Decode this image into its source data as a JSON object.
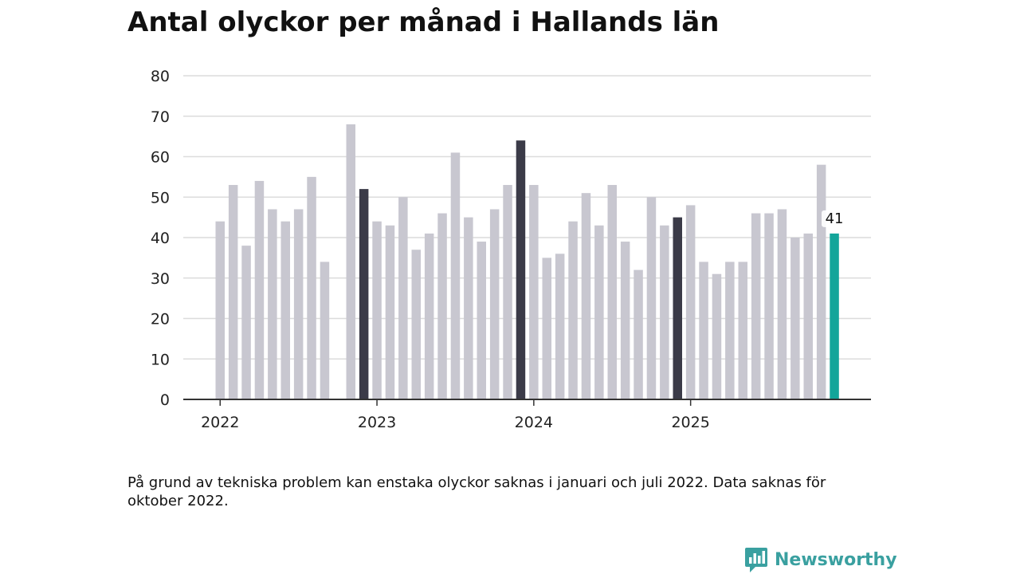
{
  "title": "Antal olyckor per månad i Hallands län",
  "note": "På grund av tekniska problem kan enstaka olyckor saknas i januari och juli 2022. Data saknas för oktober 2022.",
  "brand": {
    "name": "Newsworthy",
    "icon": "newsworthy-logo-icon"
  },
  "colors": {
    "default": "#c8c7d0",
    "december": "#3b3b48",
    "latest": "#13a59a",
    "grid": "#dcdcdc",
    "axis": "#333333"
  },
  "chart_data": {
    "type": "bar",
    "title": "Antal olyckor per månad i Hallands län",
    "xlabel": "",
    "ylabel": "",
    "ylim": [
      0,
      80
    ],
    "yticks": [
      0,
      10,
      20,
      30,
      40,
      50,
      60,
      70,
      80
    ],
    "ytick_labels": [
      "0",
      "10",
      "20",
      "30",
      "40",
      "50",
      "60",
      "70",
      "80"
    ],
    "xtick_labels": [
      {
        "label": "2022",
        "index": 0
      },
      {
        "label": "2023",
        "index": 12
      },
      {
        "label": "2024",
        "index": 24
      },
      {
        "label": "2025",
        "index": 36
      }
    ],
    "categories": [
      "2022-01",
      "2022-02",
      "2022-03",
      "2022-04",
      "2022-05",
      "2022-06",
      "2022-07",
      "2022-08",
      "2022-09",
      "2022-10",
      "2022-11",
      "2022-12",
      "2023-01",
      "2023-02",
      "2023-03",
      "2023-04",
      "2023-05",
      "2023-06",
      "2023-07",
      "2023-08",
      "2023-09",
      "2023-10",
      "2023-11",
      "2023-12",
      "2024-01",
      "2024-02",
      "2024-03",
      "2024-04",
      "2024-05",
      "2024-06",
      "2024-07",
      "2024-08",
      "2024-09",
      "2024-10",
      "2024-11",
      "2024-12",
      "2025-01",
      "2025-02",
      "2025-03",
      "2025-04",
      "2025-05",
      "2025-06",
      "2025-07",
      "2025-08",
      "2025-09",
      "2025-10",
      "2025-11",
      "2025-12"
    ],
    "values": [
      44,
      53,
      38,
      54,
      47,
      44,
      47,
      55,
      34,
      null,
      68,
      52,
      44,
      43,
      50,
      37,
      41,
      46,
      61,
      45,
      39,
      47,
      53,
      64,
      53,
      35,
      36,
      44,
      51,
      43,
      53,
      39,
      32,
      50,
      43,
      45,
      48,
      34,
      31,
      34,
      34,
      46,
      46,
      47,
      40,
      41,
      58,
      41
    ],
    "highlight": {
      "december": [
        11,
        23,
        35
      ],
      "latest": 47
    },
    "data_labels": [
      {
        "index": 47,
        "text": "41"
      }
    ],
    "grid": true
  }
}
